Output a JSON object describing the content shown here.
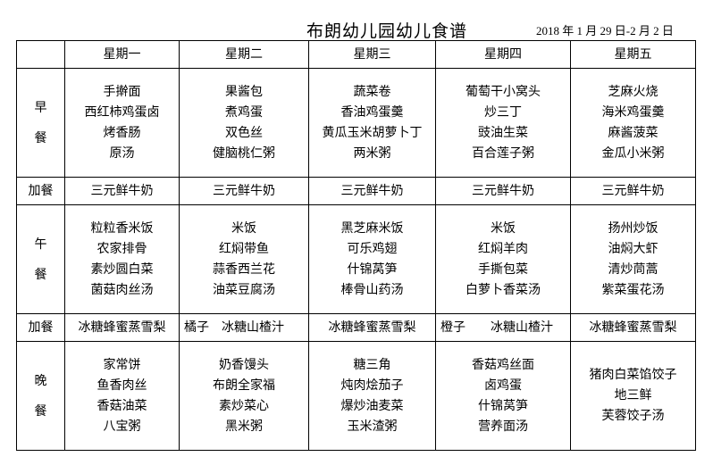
{
  "title": "布朗幼儿园幼儿食谱",
  "date_range": "2018 年 1 月 29 日-2 月 2 日",
  "days": [
    "星期一",
    "星期二",
    "星期三",
    "星期四",
    "星期五"
  ],
  "meals": [
    {
      "label_lines": [
        "早",
        "餐"
      ],
      "type": "main",
      "cells": [
        [
          "手擀面",
          "西红柿鸡蛋卤",
          "烤香肠",
          "原汤"
        ],
        [
          "果酱包",
          "煮鸡蛋",
          "双色丝",
          "健脑桃仁粥"
        ],
        [
          "蔬菜卷",
          "香油鸡蛋羹",
          "黄瓜玉米胡萝卜丁",
          "两米粥"
        ],
        [
          "葡萄干小窝头",
          "炒三丁",
          "豉油生菜",
          "百合莲子粥"
        ],
        [
          "芝麻火烧",
          "海米鸡蛋羹",
          "麻酱菠菜",
          "金瓜小米粥"
        ]
      ]
    },
    {
      "label": "加餐",
      "type": "snack",
      "cells": [
        "三元鲜牛奶",
        "三元鲜牛奶",
        "三元鲜牛奶",
        "三元鲜牛奶",
        "三元鲜牛奶"
      ]
    },
    {
      "label_lines": [
        "午",
        "餐"
      ],
      "type": "main",
      "cells": [
        [
          "粒粒香米饭",
          "农家排骨",
          "素炒圆白菜",
          "菌菇肉丝汤"
        ],
        [
          "米饭",
          "红焖带鱼",
          "蒜香西兰花",
          "油菜豆腐汤"
        ],
        [
          "黑芝麻米饭",
          "可乐鸡翅",
          "什锦莴笋",
          "棒骨山药汤"
        ],
        [
          "米饭",
          "红焖羊肉",
          "手撕包菜",
          "白萝卜香菜汤"
        ],
        [
          "扬州炒饭",
          "油焖大虾",
          "清炒茼蒿",
          "紫菜蛋花汤"
        ]
      ]
    },
    {
      "label": "加餐",
      "type": "snack",
      "cells": [
        "冰糖蜂蜜蒸雪梨",
        "橘子　冰糖山楂汁",
        "冰糖蜂蜜蒸雪梨",
        "橙子　　冰糖山楂汁",
        "冰糖蜂蜜蒸雪梨"
      ]
    },
    {
      "label_lines": [
        "晚",
        "餐"
      ],
      "type": "main",
      "cells": [
        [
          "家常饼",
          "鱼香肉丝",
          "香菇油菜",
          "八宝粥"
        ],
        [
          "奶香馒头",
          "布朗全家福",
          "素炒菜心",
          "黑米粥"
        ],
        [
          "糖三角",
          "炖肉烩茄子",
          "爆炒油麦菜",
          "玉米渣粥"
        ],
        [
          "香菇鸡丝面",
          "卤鸡蛋",
          "什锦莴笋",
          "营养面汤"
        ],
        [
          "猪肉白菜馅饺子",
          "地三鲜",
          "芙蓉饺子汤"
        ]
      ]
    }
  ]
}
